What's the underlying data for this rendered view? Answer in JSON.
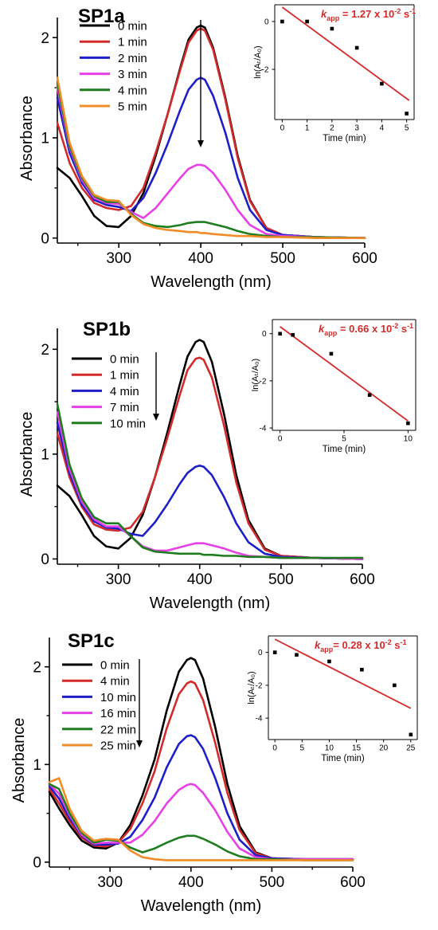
{
  "colors": {
    "black": "#000000",
    "red": "#d42a2a",
    "blue": "#1f1fc8",
    "magenta": "#e640e6",
    "green": "#1e7d1e",
    "orange": "#f28c28",
    "fit_line": "#d42a2a"
  },
  "chart_data": [
    {
      "type": "line",
      "title": "SP1a",
      "xlabel": "Wavelength (nm)",
      "ylabel": "Absorbance",
      "xlim": [
        225,
        600
      ],
      "ylim": [
        -0.05,
        2.2
      ],
      "xticks": [
        300,
        400,
        500,
        600
      ],
      "yticks": [
        0,
        1,
        2
      ],
      "legend_position": "top-left",
      "series": [
        {
          "name": "0 min",
          "color": "black",
          "x": [
            225,
            240,
            255,
            270,
            285,
            300,
            315,
            330,
            345,
            360,
            375,
            385,
            395,
            400,
            405,
            415,
            430,
            445,
            460,
            480,
            500,
            540,
            600
          ],
          "y": [
            0.7,
            0.6,
            0.42,
            0.22,
            0.12,
            0.11,
            0.22,
            0.45,
            0.82,
            1.25,
            1.7,
            1.98,
            2.1,
            2.12,
            2.1,
            1.9,
            1.4,
            0.82,
            0.38,
            0.1,
            0.03,
            0.01,
            0.0
          ]
        },
        {
          "name": "1 min",
          "color": "red",
          "x": [
            225,
            240,
            255,
            270,
            285,
            300,
            315,
            330,
            345,
            360,
            375,
            385,
            395,
            400,
            405,
            415,
            430,
            445,
            460,
            480,
            500,
            540,
            600
          ],
          "y": [
            1.15,
            0.75,
            0.5,
            0.35,
            0.3,
            0.28,
            0.32,
            0.5,
            0.85,
            1.25,
            1.68,
            1.95,
            2.07,
            2.09,
            2.07,
            1.88,
            1.38,
            0.8,
            0.37,
            0.1,
            0.03,
            0.01,
            0.0
          ]
        },
        {
          "name": "2 min",
          "color": "blue",
          "x": [
            225,
            240,
            255,
            270,
            285,
            300,
            315,
            330,
            345,
            360,
            375,
            385,
            395,
            400,
            405,
            415,
            430,
            445,
            460,
            480,
            500,
            540,
            600
          ],
          "y": [
            1.4,
            0.85,
            0.55,
            0.38,
            0.33,
            0.31,
            0.27,
            0.4,
            0.65,
            0.95,
            1.28,
            1.48,
            1.58,
            1.6,
            1.58,
            1.42,
            1.05,
            0.6,
            0.28,
            0.08,
            0.03,
            0.01,
            0.0
          ]
        },
        {
          "name": "3 min",
          "color": "magenta",
          "x": [
            225,
            240,
            255,
            270,
            285,
            300,
            315,
            330,
            345,
            360,
            375,
            385,
            395,
            400,
            405,
            415,
            430,
            445,
            460,
            480,
            500,
            540,
            600
          ],
          "y": [
            1.5,
            0.9,
            0.58,
            0.4,
            0.35,
            0.34,
            0.26,
            0.2,
            0.3,
            0.45,
            0.6,
            0.69,
            0.73,
            0.73,
            0.72,
            0.65,
            0.48,
            0.28,
            0.13,
            0.04,
            0.02,
            0.01,
            0.0
          ]
        },
        {
          "name": "4 min",
          "color": "green",
          "x": [
            225,
            240,
            255,
            270,
            285,
            300,
            315,
            330,
            345,
            360,
            375,
            385,
            395,
            400,
            405,
            415,
            430,
            445,
            460,
            480,
            500,
            540,
            600
          ],
          "y": [
            1.55,
            0.92,
            0.6,
            0.42,
            0.36,
            0.36,
            0.24,
            0.15,
            0.12,
            0.11,
            0.13,
            0.15,
            0.16,
            0.16,
            0.16,
            0.14,
            0.11,
            0.07,
            0.04,
            0.02,
            0.01,
            0.01,
            0.0
          ]
        },
        {
          "name": "5 min",
          "color": "orange",
          "x": [
            225,
            240,
            255,
            270,
            285,
            300,
            315,
            330,
            345,
            360,
            375,
            385,
            395,
            400,
            405,
            415,
            430,
            445,
            460,
            480,
            500,
            540,
            600
          ],
          "y": [
            1.6,
            0.95,
            0.62,
            0.43,
            0.38,
            0.37,
            0.23,
            0.14,
            0.1,
            0.08,
            0.07,
            0.06,
            0.06,
            0.05,
            0.05,
            0.04,
            0.03,
            0.02,
            0.02,
            0.01,
            0.01,
            0.0,
            0.0
          ]
        }
      ]
    },
    {
      "type": "scatter",
      "title": "",
      "annotation": {
        "k": "k",
        "sub": "app",
        "text": " = 1.27 x 10",
        "exp": "-2",
        "unit": " s",
        "unit_exp": "-1"
      },
      "ylabel": "ln(Aₜ/A₀)",
      "xlabel": "Time (min)",
      "xlim": [
        -0.3,
        5.3
      ],
      "ylim": [
        -4.1,
        0.7
      ],
      "xticks": [
        0,
        1,
        2,
        3,
        4,
        5
      ],
      "yticks": [
        0,
        -2
      ],
      "x": [
        0,
        1,
        2,
        3,
        4,
        5
      ],
      "y": [
        0,
        0,
        -0.3,
        -1.1,
        -2.6,
        -3.85
      ],
      "fit": {
        "x": [
          0,
          5.1
        ],
        "y": [
          0.6,
          -3.3
        ]
      }
    },
    {
      "type": "line",
      "title": "SP1b",
      "xlabel": "Wavelength (nm)",
      "ylabel": "Absorbance",
      "xlim": [
        225,
        600
      ],
      "ylim": [
        -0.05,
        2.2
      ],
      "xticks": [
        300,
        400,
        500,
        600
      ],
      "yticks": [
        0,
        1,
        2
      ],
      "legend_position": "top-left",
      "series": [
        {
          "name": "0 min",
          "color": "black",
          "x": [
            225,
            240,
            255,
            270,
            285,
            300,
            315,
            330,
            345,
            360,
            375,
            385,
            395,
            400,
            405,
            415,
            430,
            445,
            460,
            480,
            500,
            540,
            600
          ],
          "y": [
            0.7,
            0.6,
            0.42,
            0.22,
            0.12,
            0.1,
            0.2,
            0.42,
            0.78,
            1.2,
            1.65,
            1.93,
            2.07,
            2.09,
            2.07,
            1.88,
            1.38,
            0.8,
            0.37,
            0.1,
            0.03,
            0.01,
            0.0
          ]
        },
        {
          "name": "1 min",
          "color": "red",
          "x": [
            225,
            240,
            255,
            270,
            285,
            300,
            315,
            330,
            345,
            360,
            375,
            385,
            395,
            400,
            405,
            415,
            430,
            445,
            460,
            480,
            500,
            540,
            600
          ],
          "y": [
            1.2,
            0.78,
            0.5,
            0.33,
            0.28,
            0.27,
            0.3,
            0.45,
            0.78,
            1.15,
            1.55,
            1.8,
            1.91,
            1.92,
            1.9,
            1.73,
            1.27,
            0.73,
            0.34,
            0.09,
            0.03,
            0.01,
            0.0
          ]
        },
        {
          "name": "4 min",
          "color": "blue",
          "x": [
            225,
            240,
            255,
            270,
            285,
            300,
            315,
            330,
            345,
            360,
            375,
            385,
            395,
            400,
            405,
            415,
            430,
            445,
            460,
            480,
            500,
            540,
            600
          ],
          "y": [
            1.3,
            0.82,
            0.52,
            0.36,
            0.3,
            0.29,
            0.24,
            0.22,
            0.35,
            0.52,
            0.71,
            0.82,
            0.88,
            0.89,
            0.88,
            0.8,
            0.59,
            0.34,
            0.16,
            0.05,
            0.02,
            0.01,
            0.0
          ]
        },
        {
          "name": "7 min",
          "color": "magenta",
          "x": [
            225,
            240,
            255,
            270,
            285,
            300,
            315,
            330,
            345,
            360,
            375,
            385,
            395,
            400,
            405,
            415,
            430,
            445,
            460,
            480,
            500,
            540,
            600
          ],
          "y": [
            1.4,
            0.86,
            0.55,
            0.38,
            0.31,
            0.31,
            0.22,
            0.12,
            0.08,
            0.08,
            0.11,
            0.13,
            0.15,
            0.15,
            0.15,
            0.13,
            0.1,
            0.06,
            0.03,
            0.02,
            0.01,
            0.01,
            0.0
          ]
        },
        {
          "name": "10 min",
          "color": "green",
          "x": [
            225,
            240,
            255,
            270,
            285,
            300,
            315,
            330,
            345,
            360,
            375,
            385,
            395,
            400,
            405,
            415,
            430,
            445,
            460,
            480,
            500,
            540,
            600
          ],
          "y": [
            1.48,
            0.9,
            0.58,
            0.4,
            0.34,
            0.34,
            0.22,
            0.11,
            0.07,
            0.06,
            0.05,
            0.05,
            0.05,
            0.05,
            0.04,
            0.04,
            0.03,
            0.03,
            0.02,
            0.02,
            0.01,
            0.01,
            0.01
          ]
        }
      ]
    },
    {
      "type": "scatter",
      "title": "",
      "annotation": {
        "k": "k",
        "sub": "app",
        "text": " = 0.66 x 10",
        "exp": "-2",
        "unit": " s",
        "unit_exp": "-1"
      },
      "ylabel": "ln(Aₜ/A₀)",
      "xlabel": "Time (min)",
      "xlim": [
        -0.6,
        10.6
      ],
      "ylim": [
        -4.1,
        0.6
      ],
      "xticks": [
        0,
        5,
        10
      ],
      "yticks": [
        0,
        -2,
        -4
      ],
      "x": [
        0,
        1,
        4,
        7,
        10
      ],
      "y": [
        0,
        -0.05,
        -0.85,
        -2.6,
        -3.8
      ],
      "fit": {
        "x": [
          0,
          10
        ],
        "y": [
          0.3,
          -3.7
        ]
      }
    },
    {
      "type": "line",
      "title": "SP1c",
      "xlabel": "Wavelength (nm)",
      "ylabel": "Absorbance",
      "xlim": [
        225,
        600
      ],
      "ylim": [
        -0.05,
        2.3
      ],
      "xticks": [
        300,
        400,
        500,
        600
      ],
      "yticks": [
        0,
        1,
        2
      ],
      "legend_position": "top-left",
      "series": [
        {
          "name": "0 min",
          "color": "black",
          "x": [
            225,
            237,
            250,
            265,
            280,
            295,
            310,
            325,
            340,
            355,
            370,
            385,
            395,
            400,
            405,
            415,
            430,
            445,
            460,
            480,
            500,
            540,
            600
          ],
          "y": [
            0.72,
            0.55,
            0.38,
            0.22,
            0.15,
            0.14,
            0.2,
            0.38,
            0.68,
            1.05,
            1.55,
            1.95,
            2.07,
            2.09,
            2.07,
            1.88,
            1.38,
            0.8,
            0.37,
            0.1,
            0.04,
            0.03,
            0.03
          ]
        },
        {
          "name": "4 min",
          "color": "red",
          "x": [
            225,
            237,
            250,
            265,
            280,
            295,
            310,
            325,
            340,
            355,
            370,
            385,
            395,
            400,
            405,
            415,
            430,
            445,
            460,
            480,
            500,
            540,
            600
          ],
          "y": [
            0.75,
            0.6,
            0.42,
            0.25,
            0.17,
            0.16,
            0.2,
            0.34,
            0.6,
            0.93,
            1.37,
            1.72,
            1.83,
            1.85,
            1.83,
            1.66,
            1.22,
            0.71,
            0.33,
            0.09,
            0.04,
            0.03,
            0.03
          ]
        },
        {
          "name": "10 min",
          "color": "blue",
          "x": [
            225,
            237,
            250,
            265,
            280,
            295,
            310,
            325,
            340,
            355,
            370,
            385,
            395,
            400,
            405,
            415,
            430,
            445,
            460,
            480,
            500,
            540,
            600
          ],
          "y": [
            0.78,
            0.65,
            0.45,
            0.27,
            0.18,
            0.18,
            0.19,
            0.26,
            0.43,
            0.66,
            0.97,
            1.21,
            1.29,
            1.3,
            1.28,
            1.16,
            0.86,
            0.5,
            0.23,
            0.07,
            0.04,
            0.03,
            0.03
          ]
        },
        {
          "name": "16 min",
          "color": "magenta",
          "x": [
            225,
            237,
            250,
            265,
            280,
            295,
            310,
            325,
            340,
            355,
            370,
            385,
            395,
            400,
            405,
            415,
            430,
            445,
            460,
            480,
            500,
            540,
            600
          ],
          "y": [
            0.8,
            0.7,
            0.48,
            0.28,
            0.19,
            0.2,
            0.2,
            0.2,
            0.28,
            0.42,
            0.6,
            0.74,
            0.79,
            0.8,
            0.79,
            0.71,
            0.53,
            0.31,
            0.14,
            0.05,
            0.03,
            0.03,
            0.03
          ]
        },
        {
          "name": "22 min",
          "color": "green",
          "x": [
            225,
            237,
            250,
            265,
            280,
            295,
            310,
            325,
            340,
            355,
            370,
            385,
            395,
            400,
            405,
            415,
            430,
            445,
            460,
            480,
            500,
            540,
            600
          ],
          "y": [
            0.8,
            0.75,
            0.5,
            0.3,
            0.2,
            0.23,
            0.22,
            0.15,
            0.1,
            0.14,
            0.2,
            0.25,
            0.27,
            0.27,
            0.27,
            0.24,
            0.18,
            0.11,
            0.06,
            0.03,
            0.03,
            0.02,
            0.02
          ]
        },
        {
          "name": "25 min",
          "color": "orange",
          "x": [
            225,
            237,
            250,
            265,
            280,
            295,
            310,
            325,
            340,
            355,
            370,
            385,
            395,
            400,
            405,
            415,
            430,
            445,
            460,
            480,
            500,
            540,
            600
          ],
          "y": [
            0.82,
            0.86,
            0.55,
            0.32,
            0.22,
            0.24,
            0.23,
            0.12,
            0.05,
            0.03,
            0.02,
            0.02,
            0.02,
            0.02,
            0.02,
            0.02,
            0.02,
            0.02,
            0.02,
            0.02,
            0.02,
            0.02,
            0.02
          ]
        }
      ]
    },
    {
      "type": "scatter",
      "title": "",
      "annotation": {
        "k": "k",
        "sub": "app",
        "text": "= 0.28 x 10",
        "exp": "-2",
        "unit": " s",
        "unit_exp": "-1"
      },
      "ylabel": "ln(Aₜ/A₀)",
      "xlabel": "Time (min)",
      "xlim": [
        -1.2,
        26.2
      ],
      "ylim": [
        -5.3,
        1.0
      ],
      "xticks": [
        0,
        5,
        10,
        15,
        20,
        25
      ],
      "yticks": [
        0,
        -2,
        -4
      ],
      "x": [
        0,
        4,
        10,
        16,
        22,
        25
      ],
      "y": [
        0,
        -0.15,
        -0.55,
        -1.05,
        -2.0,
        -5.0
      ],
      "fit": {
        "x": [
          0,
          25
        ],
        "y": [
          0.8,
          -3.4
        ]
      }
    }
  ]
}
